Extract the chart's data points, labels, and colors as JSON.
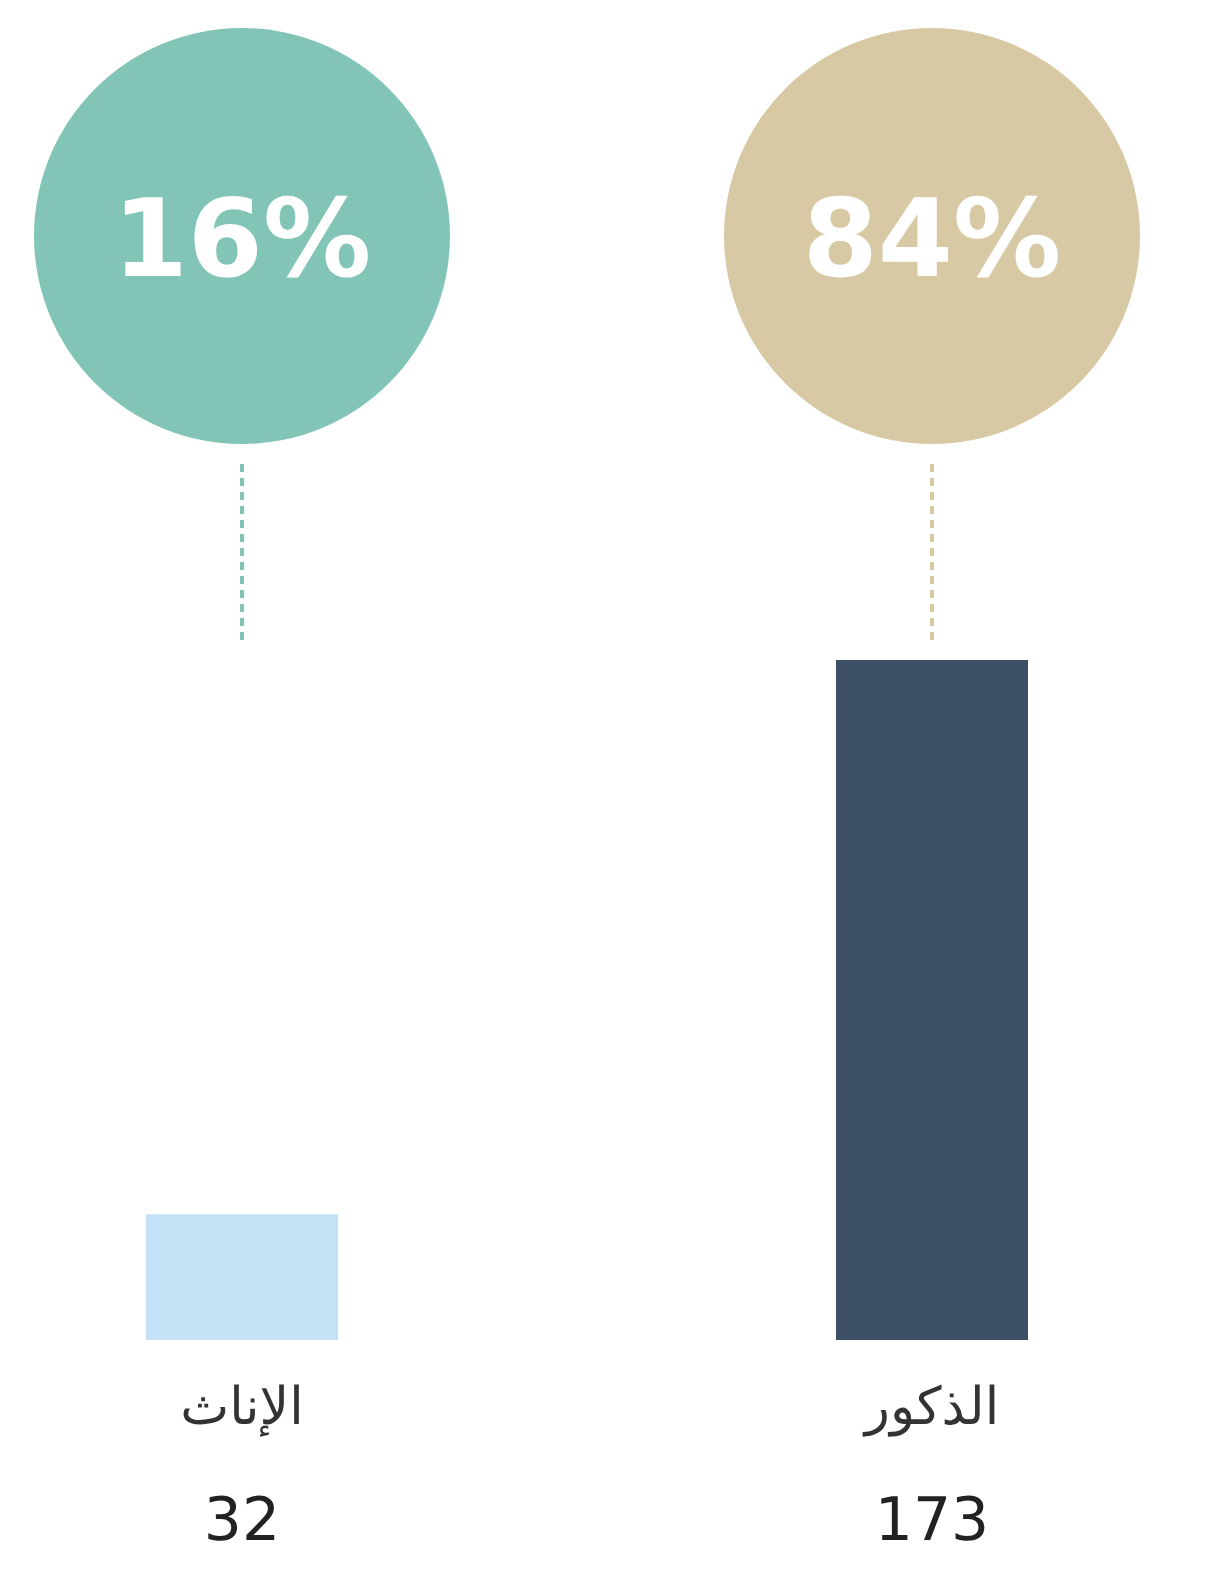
{
  "chart_data": {
    "type": "bar",
    "categories": [
      "الإناث",
      "الذكور"
    ],
    "values": [
      32,
      173
    ],
    "colors": [
      "#c5e1f5",
      "#3d5068"
    ],
    "data_labels": true,
    "annotations": [
      "16%",
      "84%"
    ]
  }
}
